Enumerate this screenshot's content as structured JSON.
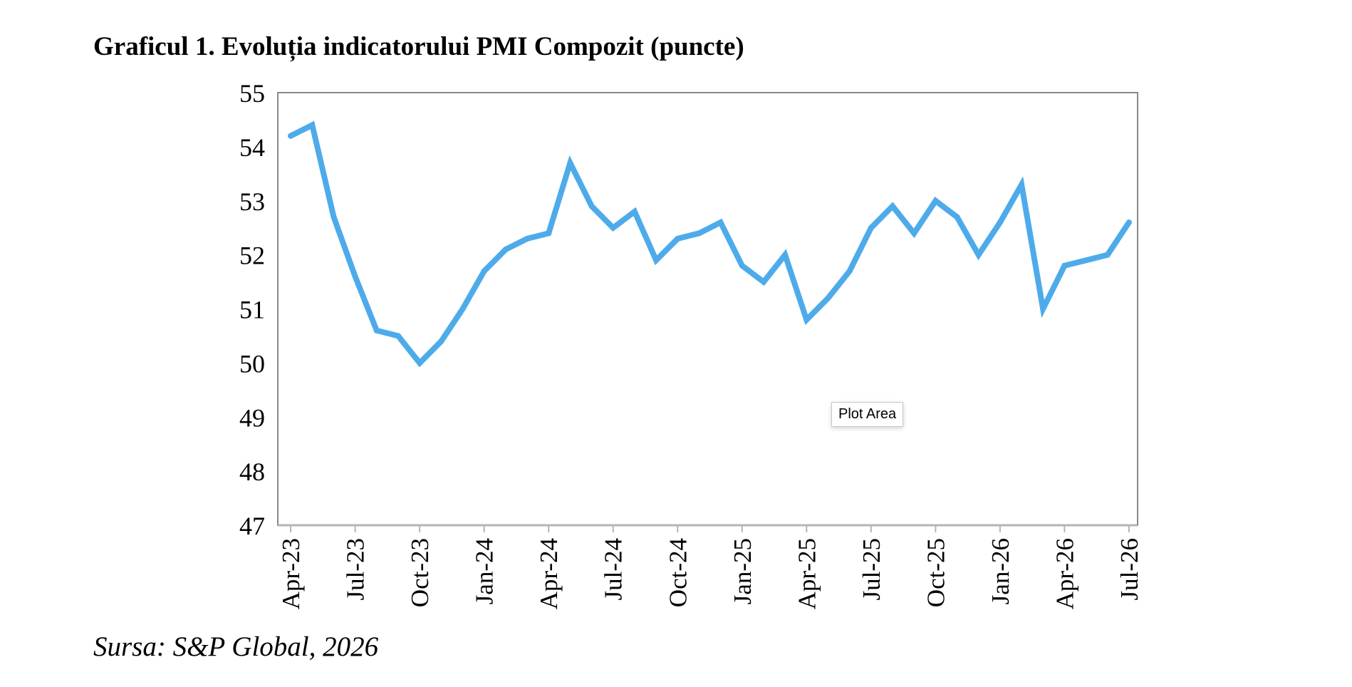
{
  "title": "Graficul 1. Evoluția indicatorului PMI Compozit (puncte)",
  "source": "Sursa: S&P Global, 2026",
  "tooltip": "Plot Area",
  "colors": {
    "line": "#4EABEA",
    "frame": "#888888",
    "axis": "#b5b5b5"
  },
  "chart_data": {
    "type": "line",
    "ylim": [
      47,
      55
    ],
    "yticks": [
      "47",
      "48",
      "49",
      "50",
      "51",
      "52",
      "53",
      "54",
      "55"
    ],
    "xtick_labels": [
      "Apr-23",
      "Jul-23",
      "Oct-23",
      "Jan-24",
      "Apr-24",
      "Jul-24",
      "Oct-24",
      "Jan-25",
      "Apr-25",
      "Jul-25",
      "Oct-25",
      "Jan-26",
      "Apr-26",
      "Jul-26"
    ],
    "grid": false,
    "x": [
      "Apr-23",
      "May-23",
      "Jun-23",
      "Jul-23",
      "Aug-23",
      "Sep-23",
      "Oct-23",
      "Nov-23",
      "Dec-23",
      "Jan-24",
      "Feb-24",
      "Mar-24",
      "Apr-24",
      "May-24",
      "Jun-24",
      "Jul-24",
      "Aug-24",
      "Sep-24",
      "Oct-24",
      "Nov-24",
      "Dec-24",
      "Jan-25",
      "Feb-25",
      "Mar-25",
      "Apr-25",
      "May-25",
      "Jun-25",
      "Jul-25",
      "Aug-25",
      "Sep-25",
      "Oct-25",
      "Nov-25",
      "Dec-25",
      "Jan-26",
      "Feb-26",
      "Mar-26",
      "Apr-26",
      "May-26",
      "Jun-26",
      "Jul-26"
    ],
    "series": [
      {
        "values": [
          54.2,
          54.4,
          52.7,
          51.6,
          50.6,
          50.5,
          50.0,
          50.4,
          51.0,
          51.7,
          52.1,
          52.3,
          52.4,
          53.7,
          52.9,
          52.5,
          52.8,
          51.9,
          52.3,
          52.4,
          52.6,
          51.8,
          51.5,
          52.0,
          50.8,
          51.2,
          51.7,
          52.5,
          52.9,
          52.4,
          53.0,
          52.7,
          52.0,
          52.6,
          53.3,
          51.0,
          51.8,
          51.9,
          52.0,
          52.6
        ]
      }
    ]
  }
}
